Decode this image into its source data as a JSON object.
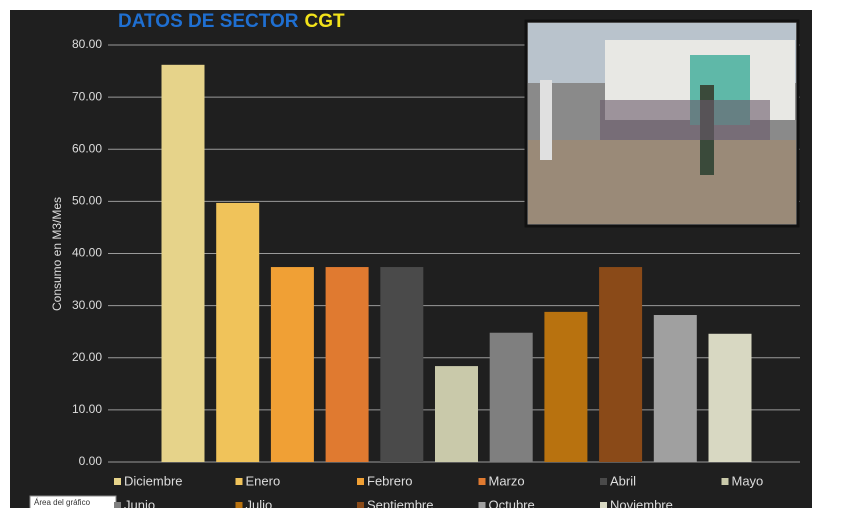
{
  "chart_data": {
    "type": "bar",
    "title": "DATOS DE SECTOR",
    "title_highlight": "CGT",
    "y_label": "Consumo en M3/Mes",
    "categories": [
      "Diciembre",
      "Enero",
      "Febrero",
      "Marzo",
      "Abril",
      "Mayo",
      "Junio",
      "Julio",
      "Septiembre",
      "Octubre",
      "Noviembre"
    ],
    "values": [
      76.2,
      49.7,
      37.4,
      37.4,
      37.4,
      18.4,
      24.8,
      28.8,
      37.4,
      28.2,
      24.6
    ],
    "colors": [
      "#e6d38a",
      "#f0c35a",
      "#f0a035",
      "#e07a30",
      "#4a4a4a",
      "#c9c9aa",
      "#7f7f7f",
      "#b8720f",
      "#8a4a18",
      "#a0a0a0",
      "#d8d8c2"
    ],
    "ylim": [
      0,
      80
    ],
    "yticks": [
      {
        "value": 0,
        "label": "0.00"
      },
      {
        "value": 10,
        "label": "10.00"
      },
      {
        "value": 20,
        "label": "20.00"
      },
      {
        "value": 30,
        "label": "30.00"
      },
      {
        "value": 40,
        "label": "40.00"
      },
      {
        "value": 50,
        "label": "50.00"
      },
      {
        "value": 60,
        "label": "60.00"
      },
      {
        "value": 70,
        "label": "70.00"
      },
      {
        "value": 80,
        "label": "80.00"
      }
    ],
    "grid": true,
    "tooltip": "Área del gráfico"
  }
}
